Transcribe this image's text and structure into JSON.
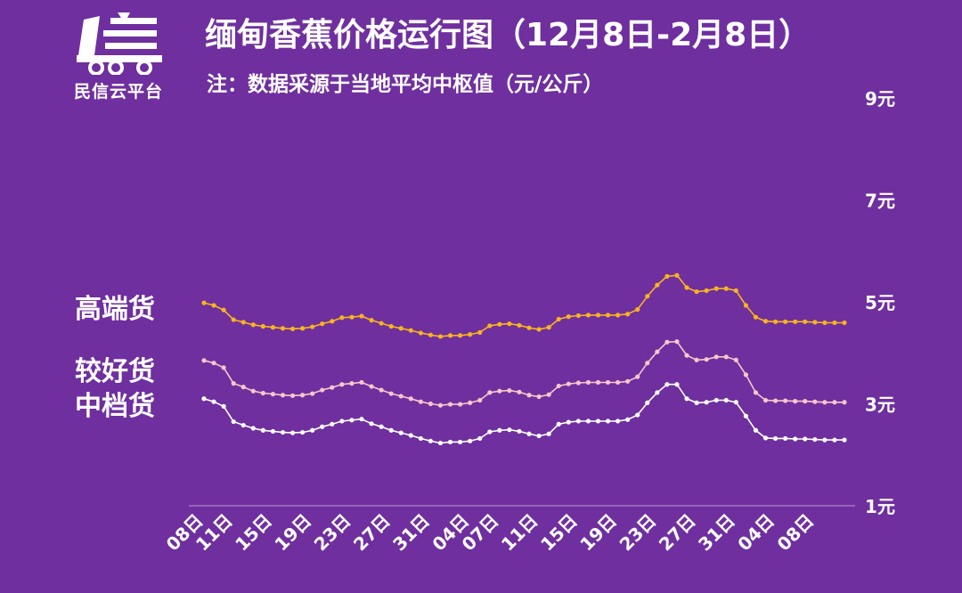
{
  "brand": {
    "name": "民信云平台",
    "icon": "truck-logo-icon"
  },
  "header": {
    "title": "缅甸香蕉价格运行图（12月8日-2月8日）",
    "note": "注：数据采源于当地平均中枢值（元/公斤）"
  },
  "colors": {
    "background": "#6f2f9f",
    "high": "#f7b51c",
    "good": "#f8c7c9",
    "mid": "#ffffff"
  },
  "chart_data": {
    "type": "line",
    "title": "缅甸香蕉价格运行图（12月8日-2月8日）",
    "ylabel": "元/公斤",
    "ylim": [
      1,
      9
    ],
    "y_ticks": [
      "1元",
      "3元",
      "5元",
      "7元",
      "9元"
    ],
    "y_tick_values": [
      1,
      3,
      5,
      7,
      9
    ],
    "x_tick_labels": [
      "08日",
      "11日",
      "15日",
      "19日",
      "23日",
      "27日",
      "31日",
      "04日",
      "07日",
      "11日",
      "15日",
      "19日",
      "23日",
      "27日",
      "31日",
      "04日",
      "08日"
    ],
    "x_tick_index": [
      0,
      3,
      7,
      11,
      15,
      19,
      23,
      27,
      30,
      34,
      38,
      42,
      46,
      50,
      54,
      58,
      62
    ],
    "grid": false,
    "series": [
      {
        "name": "高端货",
        "color": "#f7b51c",
        "values": [
          4.98,
          4.93,
          4.84,
          4.65,
          4.6,
          4.55,
          4.52,
          4.5,
          4.48,
          4.47,
          4.48,
          4.51,
          4.57,
          4.62,
          4.69,
          4.7,
          4.72,
          4.64,
          4.58,
          4.52,
          4.48,
          4.44,
          4.39,
          4.35,
          4.32,
          4.34,
          4.34,
          4.36,
          4.4,
          4.53,
          4.56,
          4.57,
          4.54,
          4.49,
          4.46,
          4.5,
          4.66,
          4.71,
          4.73,
          4.74,
          4.74,
          4.74,
          4.74,
          4.76,
          4.85,
          5.11,
          5.33,
          5.5,
          5.52,
          5.28,
          5.2,
          5.22,
          5.26,
          5.26,
          5.22,
          4.93,
          4.7,
          4.62,
          4.61,
          4.61,
          4.61,
          4.61,
          4.6,
          4.59,
          4.59,
          4.59
        ]
      },
      {
        "name": "较好货",
        "color": "#f8c7c9",
        "values": [
          3.85,
          3.8,
          3.71,
          3.4,
          3.33,
          3.25,
          3.21,
          3.19,
          3.17,
          3.16,
          3.17,
          3.2,
          3.27,
          3.32,
          3.38,
          3.4,
          3.42,
          3.34,
          3.27,
          3.2,
          3.15,
          3.1,
          3.04,
          3.0,
          2.97,
          2.99,
          2.99,
          3.02,
          3.07,
          3.22,
          3.25,
          3.26,
          3.23,
          3.17,
          3.14,
          3.18,
          3.35,
          3.39,
          3.41,
          3.42,
          3.42,
          3.42,
          3.42,
          3.44,
          3.53,
          3.8,
          4.02,
          4.21,
          4.22,
          3.95,
          3.86,
          3.87,
          3.92,
          3.92,
          3.86,
          3.57,
          3.22,
          3.07,
          3.06,
          3.06,
          3.05,
          3.05,
          3.04,
          3.03,
          3.03,
          3.03
        ]
      },
      {
        "name": "中档货",
        "color": "#ffffff",
        "values": [
          3.1,
          3.04,
          2.95,
          2.65,
          2.58,
          2.52,
          2.48,
          2.46,
          2.44,
          2.43,
          2.44,
          2.48,
          2.55,
          2.6,
          2.66,
          2.68,
          2.7,
          2.61,
          2.55,
          2.48,
          2.43,
          2.38,
          2.32,
          2.27,
          2.23,
          2.25,
          2.25,
          2.27,
          2.32,
          2.45,
          2.48,
          2.49,
          2.46,
          2.41,
          2.37,
          2.41,
          2.6,
          2.64,
          2.66,
          2.66,
          2.66,
          2.66,
          2.66,
          2.69,
          2.78,
          3.02,
          3.22,
          3.38,
          3.38,
          3.1,
          3.02,
          3.03,
          3.07,
          3.07,
          3.03,
          2.76,
          2.48,
          2.33,
          2.32,
          2.32,
          2.31,
          2.31,
          2.3,
          2.29,
          2.29,
          2.29
        ]
      }
    ]
  }
}
